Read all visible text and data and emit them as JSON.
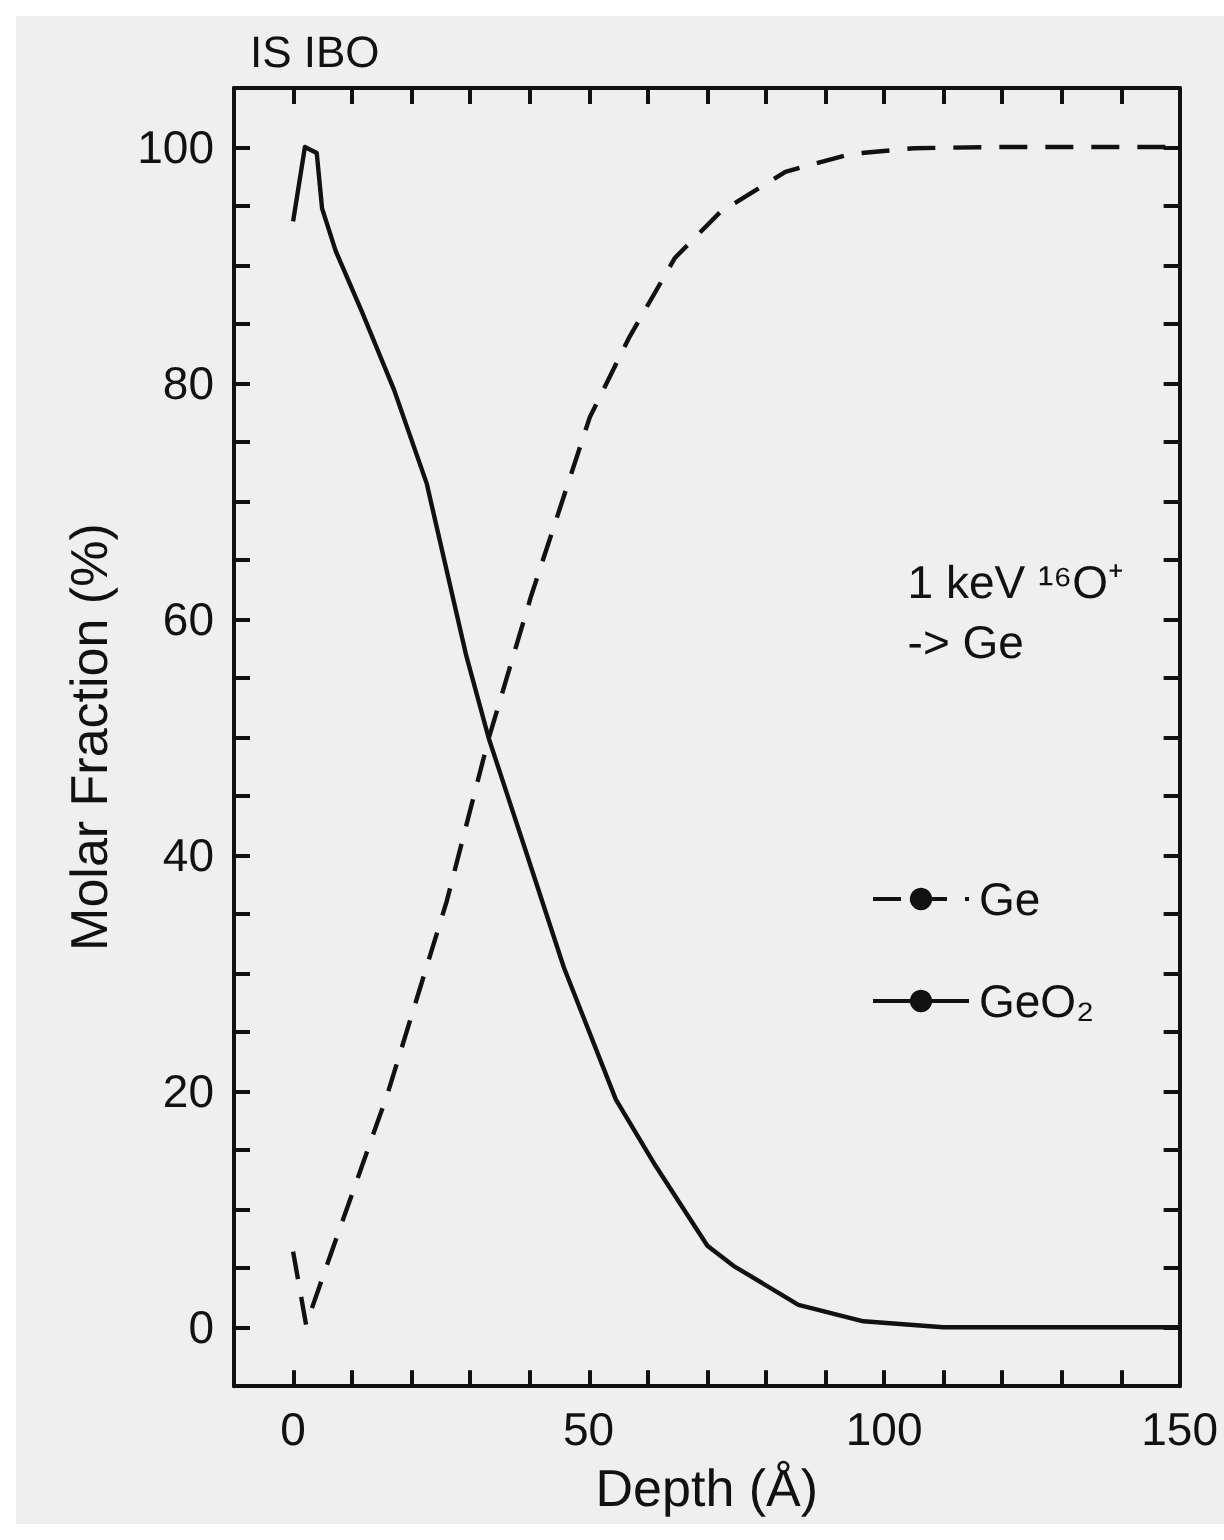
{
  "chart_data": {
    "type": "line",
    "title": "IS IBO",
    "xlabel": "Depth (Å)",
    "ylabel": "Molar Fraction (%)",
    "annotations": [
      "1 keV ¹⁶O⁺\n-> Ge"
    ],
    "xlim": [
      -10,
      150
    ],
    "ylim": [
      -5,
      105
    ],
    "xticks": [
      {
        "value": -10,
        "label": null
      },
      0,
      {
        "value": 10,
        "label": null
      },
      {
        "value": 20,
        "label": null
      },
      {
        "value": 30,
        "label": null
      },
      {
        "value": 40,
        "label": null
      },
      50,
      {
        "value": 60,
        "label": null
      },
      {
        "value": 70,
        "label": null
      },
      {
        "value": 80,
        "label": null
      },
      {
        "value": 90,
        "label": null
      },
      100,
      {
        "value": 110,
        "label": null
      },
      {
        "value": 120,
        "label": null
      },
      {
        "value": 130,
        "label": null
      },
      {
        "value": 140,
        "label": null
      },
      150
    ],
    "yticks": [
      0,
      {
        "value": 5,
        "label": null
      },
      {
        "value": 10,
        "label": null
      },
      {
        "value": 15,
        "label": null
      },
      20,
      {
        "value": 25,
        "label": null
      },
      {
        "value": 30,
        "label": null
      },
      {
        "value": 35,
        "label": null
      },
      40,
      {
        "value": 45,
        "label": null
      },
      {
        "value": 50,
        "label": null
      },
      {
        "value": 55,
        "label": null
      },
      60,
      {
        "value": 65,
        "label": null
      },
      {
        "value": 70,
        "label": null
      },
      {
        "value": 75,
        "label": null
      },
      80,
      {
        "value": 85,
        "label": null
      },
      {
        "value": 90,
        "label": null
      },
      {
        "value": 95,
        "label": null
      },
      100
    ],
    "grid": false,
    "legend": "right",
    "marker": "none",
    "series": [
      {
        "name": "Ge",
        "color": "#111111",
        "line_style": "dashed",
        "x": [
          0,
          2.2,
          6.1,
          16,
          26,
          33.1,
          40.3,
          50.2,
          56.8,
          64.6,
          72.3,
          83.3,
          94.3,
          105,
          120,
          150
        ],
        "values": [
          6.4,
          0.2,
          5.8,
          19.8,
          36.1,
          49.9,
          62,
          77.1,
          83.8,
          90.6,
          94.5,
          97.9,
          99.4,
          99.9,
          100,
          100
        ]
      },
      {
        "name": "GeO₂",
        "color": "#111111",
        "line_style": "solid",
        "x": [
          0,
          2,
          4,
          4.9,
          7.2,
          11.6,
          17.1,
          22.6,
          29.3,
          33.1,
          39.2,
          45.8,
          54.6,
          61.3,
          70.1,
          74.5,
          85.5,
          96.5,
          110,
          150
        ],
        "values": [
          93.7,
          100,
          99.5,
          94.8,
          91.2,
          86.1,
          79.4,
          71.5,
          56.9,
          49.9,
          40.6,
          30.5,
          19.3,
          13.7,
          6.9,
          5.2,
          1.9,
          0.5,
          0,
          0
        ]
      }
    ]
  }
}
